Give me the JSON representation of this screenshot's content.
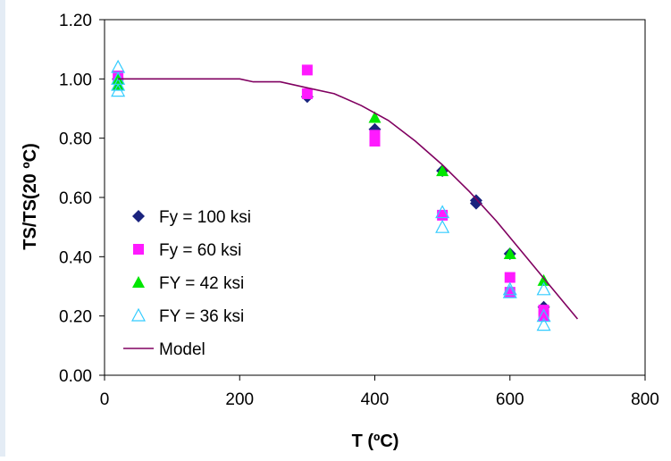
{
  "chart_data": {
    "type": "scatter",
    "title": "",
    "xlabel": "T (ºC)",
    "ylabel": "TS/TS(20 ºC)",
    "xlim": [
      0,
      800
    ],
    "ylim": [
      0,
      1.2
    ],
    "x_ticks": [
      0,
      200,
      400,
      600,
      800
    ],
    "x_tick_labels": [
      "0",
      "200",
      "400",
      "600",
      "800"
    ],
    "y_ticks": [
      0,
      0.2,
      0.4,
      0.6,
      0.8,
      1.0,
      1.2
    ],
    "y_tick_labels": [
      "0.00",
      "0.20",
      "0.40",
      "0.60",
      "0.80",
      "1.00",
      "1.20"
    ],
    "grid": false,
    "legend_placement": "lower-left",
    "series": [
      {
        "name": "Fy = 100 ksi",
        "marker": "diamond",
        "color": "#1a237e",
        "points": [
          [
            20,
            1.0
          ],
          [
            300,
            0.94
          ],
          [
            400,
            0.83
          ],
          [
            500,
            0.69
          ],
          [
            550,
            0.59
          ],
          [
            550,
            0.58
          ],
          [
            600,
            0.41
          ],
          [
            650,
            0.23
          ]
        ]
      },
      {
        "name": "Fy = 60 ksi",
        "marker": "square",
        "color": "#ff1aff",
        "points": [
          [
            20,
            1.01
          ],
          [
            300,
            1.03
          ],
          [
            300,
            0.95
          ],
          [
            400,
            0.81
          ],
          [
            400,
            0.79
          ],
          [
            500,
            0.54
          ],
          [
            600,
            0.33
          ],
          [
            600,
            0.28
          ],
          [
            650,
            0.22
          ],
          [
            650,
            0.2
          ]
        ]
      },
      {
        "name": "FY = 42 ksi",
        "marker": "triangle",
        "color": "#00e600",
        "points": [
          [
            20,
            1.0
          ],
          [
            20,
            0.98
          ],
          [
            400,
            0.87
          ],
          [
            500,
            0.69
          ],
          [
            600,
            0.41
          ],
          [
            650,
            0.32
          ]
        ]
      },
      {
        "name": "FY = 36 ksi",
        "marker": "triangle-open",
        "color": "#33ccff",
        "points": [
          [
            20,
            1.04
          ],
          [
            20,
            1.0
          ],
          [
            20,
            0.98
          ],
          [
            20,
            0.96
          ],
          [
            500,
            0.55
          ],
          [
            500,
            0.5
          ],
          [
            600,
            0.29
          ],
          [
            600,
            0.28
          ],
          [
            650,
            0.29
          ],
          [
            650,
            0.2
          ],
          [
            650,
            0.17
          ]
        ]
      },
      {
        "name": "Model",
        "marker": "line",
        "color": "#800060",
        "points": [
          [
            20,
            1.0
          ],
          [
            200,
            1.0
          ],
          [
            220,
            0.99
          ],
          [
            260,
            0.99
          ],
          [
            300,
            0.97
          ],
          [
            340,
            0.95
          ],
          [
            380,
            0.91
          ],
          [
            420,
            0.86
          ],
          [
            460,
            0.79
          ],
          [
            500,
            0.71
          ],
          [
            540,
            0.62
          ],
          [
            580,
            0.52
          ],
          [
            620,
            0.41
          ],
          [
            660,
            0.3
          ],
          [
            700,
            0.19
          ]
        ]
      }
    ]
  }
}
